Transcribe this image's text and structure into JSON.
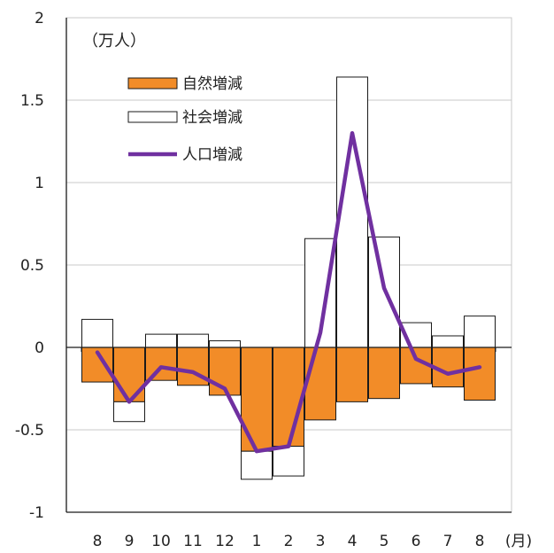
{
  "chart_data": {
    "type": "bar",
    "y_unit": "（万人）",
    "x_unit": "(月)",
    "categories": [
      "8",
      "9",
      "10",
      "11",
      "12",
      "1",
      "2",
      "3",
      "4",
      "5",
      "6",
      "7",
      "8"
    ],
    "series": [
      {
        "name": "自然増減",
        "kind": "bar",
        "color": "#f28c28",
        "values": [
          -0.21,
          -0.33,
          -0.2,
          -0.23,
          -0.29,
          -0.63,
          -0.6,
          -0.44,
          -0.33,
          -0.31,
          -0.22,
          -0.24,
          -0.32
        ]
      },
      {
        "name": "社会増減",
        "kind": "bar",
        "color": "#ffffff",
        "values": [
          0.17,
          -0.12,
          0.08,
          0.08,
          0.04,
          -0.17,
          -0.18,
          0.66,
          1.64,
          0.67,
          0.15,
          0.07,
          0.19
        ]
      },
      {
        "name": "人口増減",
        "kind": "line",
        "color": "#7030a0",
        "values": [
          -0.03,
          -0.33,
          -0.12,
          -0.15,
          -0.25,
          -0.63,
          -0.6,
          0.09,
          1.3,
          0.36,
          -0.07,
          -0.16,
          -0.12
        ]
      }
    ],
    "ylim": [
      -1,
      2
    ],
    "yticks": [
      "2",
      "1.5",
      "1",
      "0.5",
      "0",
      "-0.5",
      "-1"
    ],
    "ytick_values": [
      2,
      1.5,
      1,
      0.5,
      0,
      -0.5,
      -1
    ],
    "grid": true,
    "legend_position": "top-left"
  }
}
